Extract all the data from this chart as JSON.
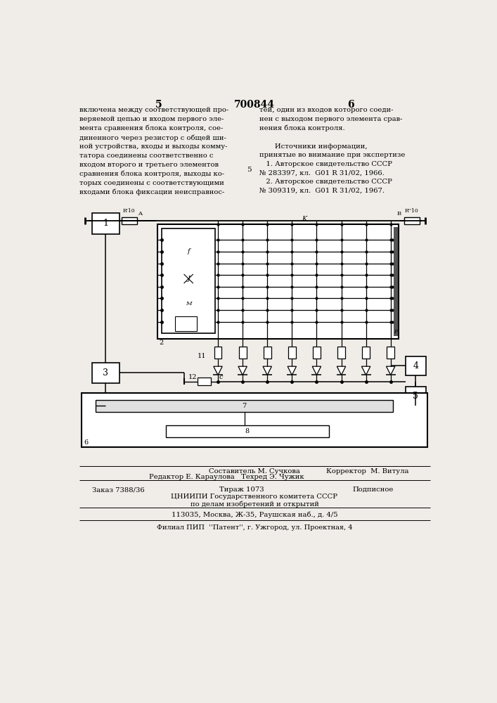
{
  "bg_color": "#f0ede8",
  "page_number_left": "5",
  "page_number_center": "700844",
  "page_number_right": "6",
  "left_text": "включена между соответствующей про-\nверяемой цепью и входом первого эле-\nмента сравнения блока контроля, сое-\nдиненного через резистор с общей ши-\nной устройства, входы и выходы комму-\nтатора соединены соответственно с\nвходом второго и третьего элементов\nсравнения блока контроля, выходы ко-\nторых соединены с соответствующими\nвходами блока фиксации неисправнос-",
  "right_text": "тей, один из входов которого соеди-\nнен с выходом первого элемента срав-\nнения блока контроля.\n\n       Источники информации,\nпринятые во внимание при экспертизе\n   1. Авторское свидетельство СССР\n№ 283397, кл.  G01 R 31/02, 1966.\n   2. Авторское свидетельство СССР\n№ 309319, кл.  G01 R 31/02, 1967.",
  "line_5": "5",
  "btl1a": "Составитель М. Сучкова",
  "btl1b": "Корректор  М. Витула",
  "btl2": "Редактор Е. Караулова   Техред Э. Чужик",
  "btl3a": "Заказ 7388/36",
  "btl3b": "Тираж 1073",
  "btl3c": "Подписное",
  "btl4": "ЦНИИПИ Государственного комитета СССР",
  "btl5": "по делам изобретений и открытий",
  "btl6": "113035, Москва, Ж-35, Раушская наб., д. 4/5",
  "btl7": "Филиал ПИП  ''Патент'', г. Ужгород, ул. Проектная, 4"
}
